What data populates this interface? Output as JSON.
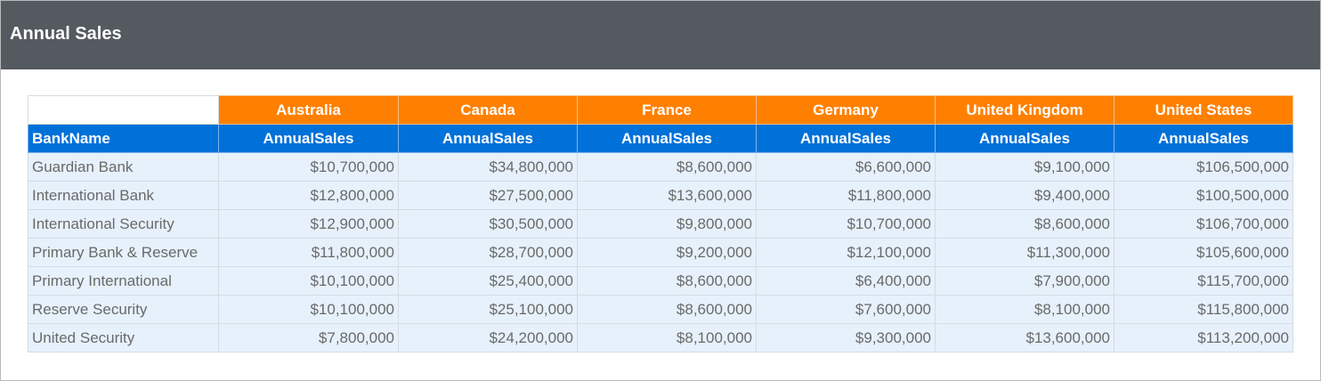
{
  "header": {
    "title": "Annual Sales"
  },
  "table": {
    "corner_label": "",
    "countries": [
      "Australia",
      "Canada",
      "France",
      "Germany",
      "United Kingdom",
      "United States"
    ],
    "row_header_label": "BankName",
    "measure_labels": [
      "AnnualSales",
      "AnnualSales",
      "AnnualSales",
      "AnnualSales",
      "AnnualSales",
      "AnnualSales"
    ],
    "rows": [
      {
        "bank": "Guardian Bank",
        "values": [
          "$10,700,000",
          "$34,800,000",
          "$8,600,000",
          "$6,600,000",
          "$9,100,000",
          "$106,500,000"
        ]
      },
      {
        "bank": "International Bank",
        "values": [
          "$12,800,000",
          "$27,500,000",
          "$13,600,000",
          "$11,800,000",
          "$9,400,000",
          "$100,500,000"
        ]
      },
      {
        "bank": "International Security",
        "values": [
          "$12,900,000",
          "$30,500,000",
          "$9,800,000",
          "$10,700,000",
          "$8,600,000",
          "$106,700,000"
        ]
      },
      {
        "bank": "Primary Bank & Reserve",
        "values": [
          "$11,800,000",
          "$28,700,000",
          "$9,200,000",
          "$12,100,000",
          "$11,300,000",
          "$105,600,000"
        ]
      },
      {
        "bank": "Primary International",
        "values": [
          "$10,100,000",
          "$25,400,000",
          "$8,600,000",
          "$6,400,000",
          "$7,900,000",
          "$115,700,000"
        ]
      },
      {
        "bank": "Reserve Security",
        "values": [
          "$10,100,000",
          "$25,100,000",
          "$8,600,000",
          "$7,600,000",
          "$8,100,000",
          "$115,800,000"
        ]
      },
      {
        "bank": "United Security",
        "values": [
          "$7,800,000",
          "$24,200,000",
          "$8,100,000",
          "$9,300,000",
          "$13,600,000",
          "$113,200,000"
        ]
      }
    ]
  },
  "colors": {
    "title_bar": "#555a61",
    "country_header": "#ff8000",
    "field_header": "#0071d9",
    "data_cell": "#e6f1fb",
    "data_text": "#6a6a6a"
  }
}
